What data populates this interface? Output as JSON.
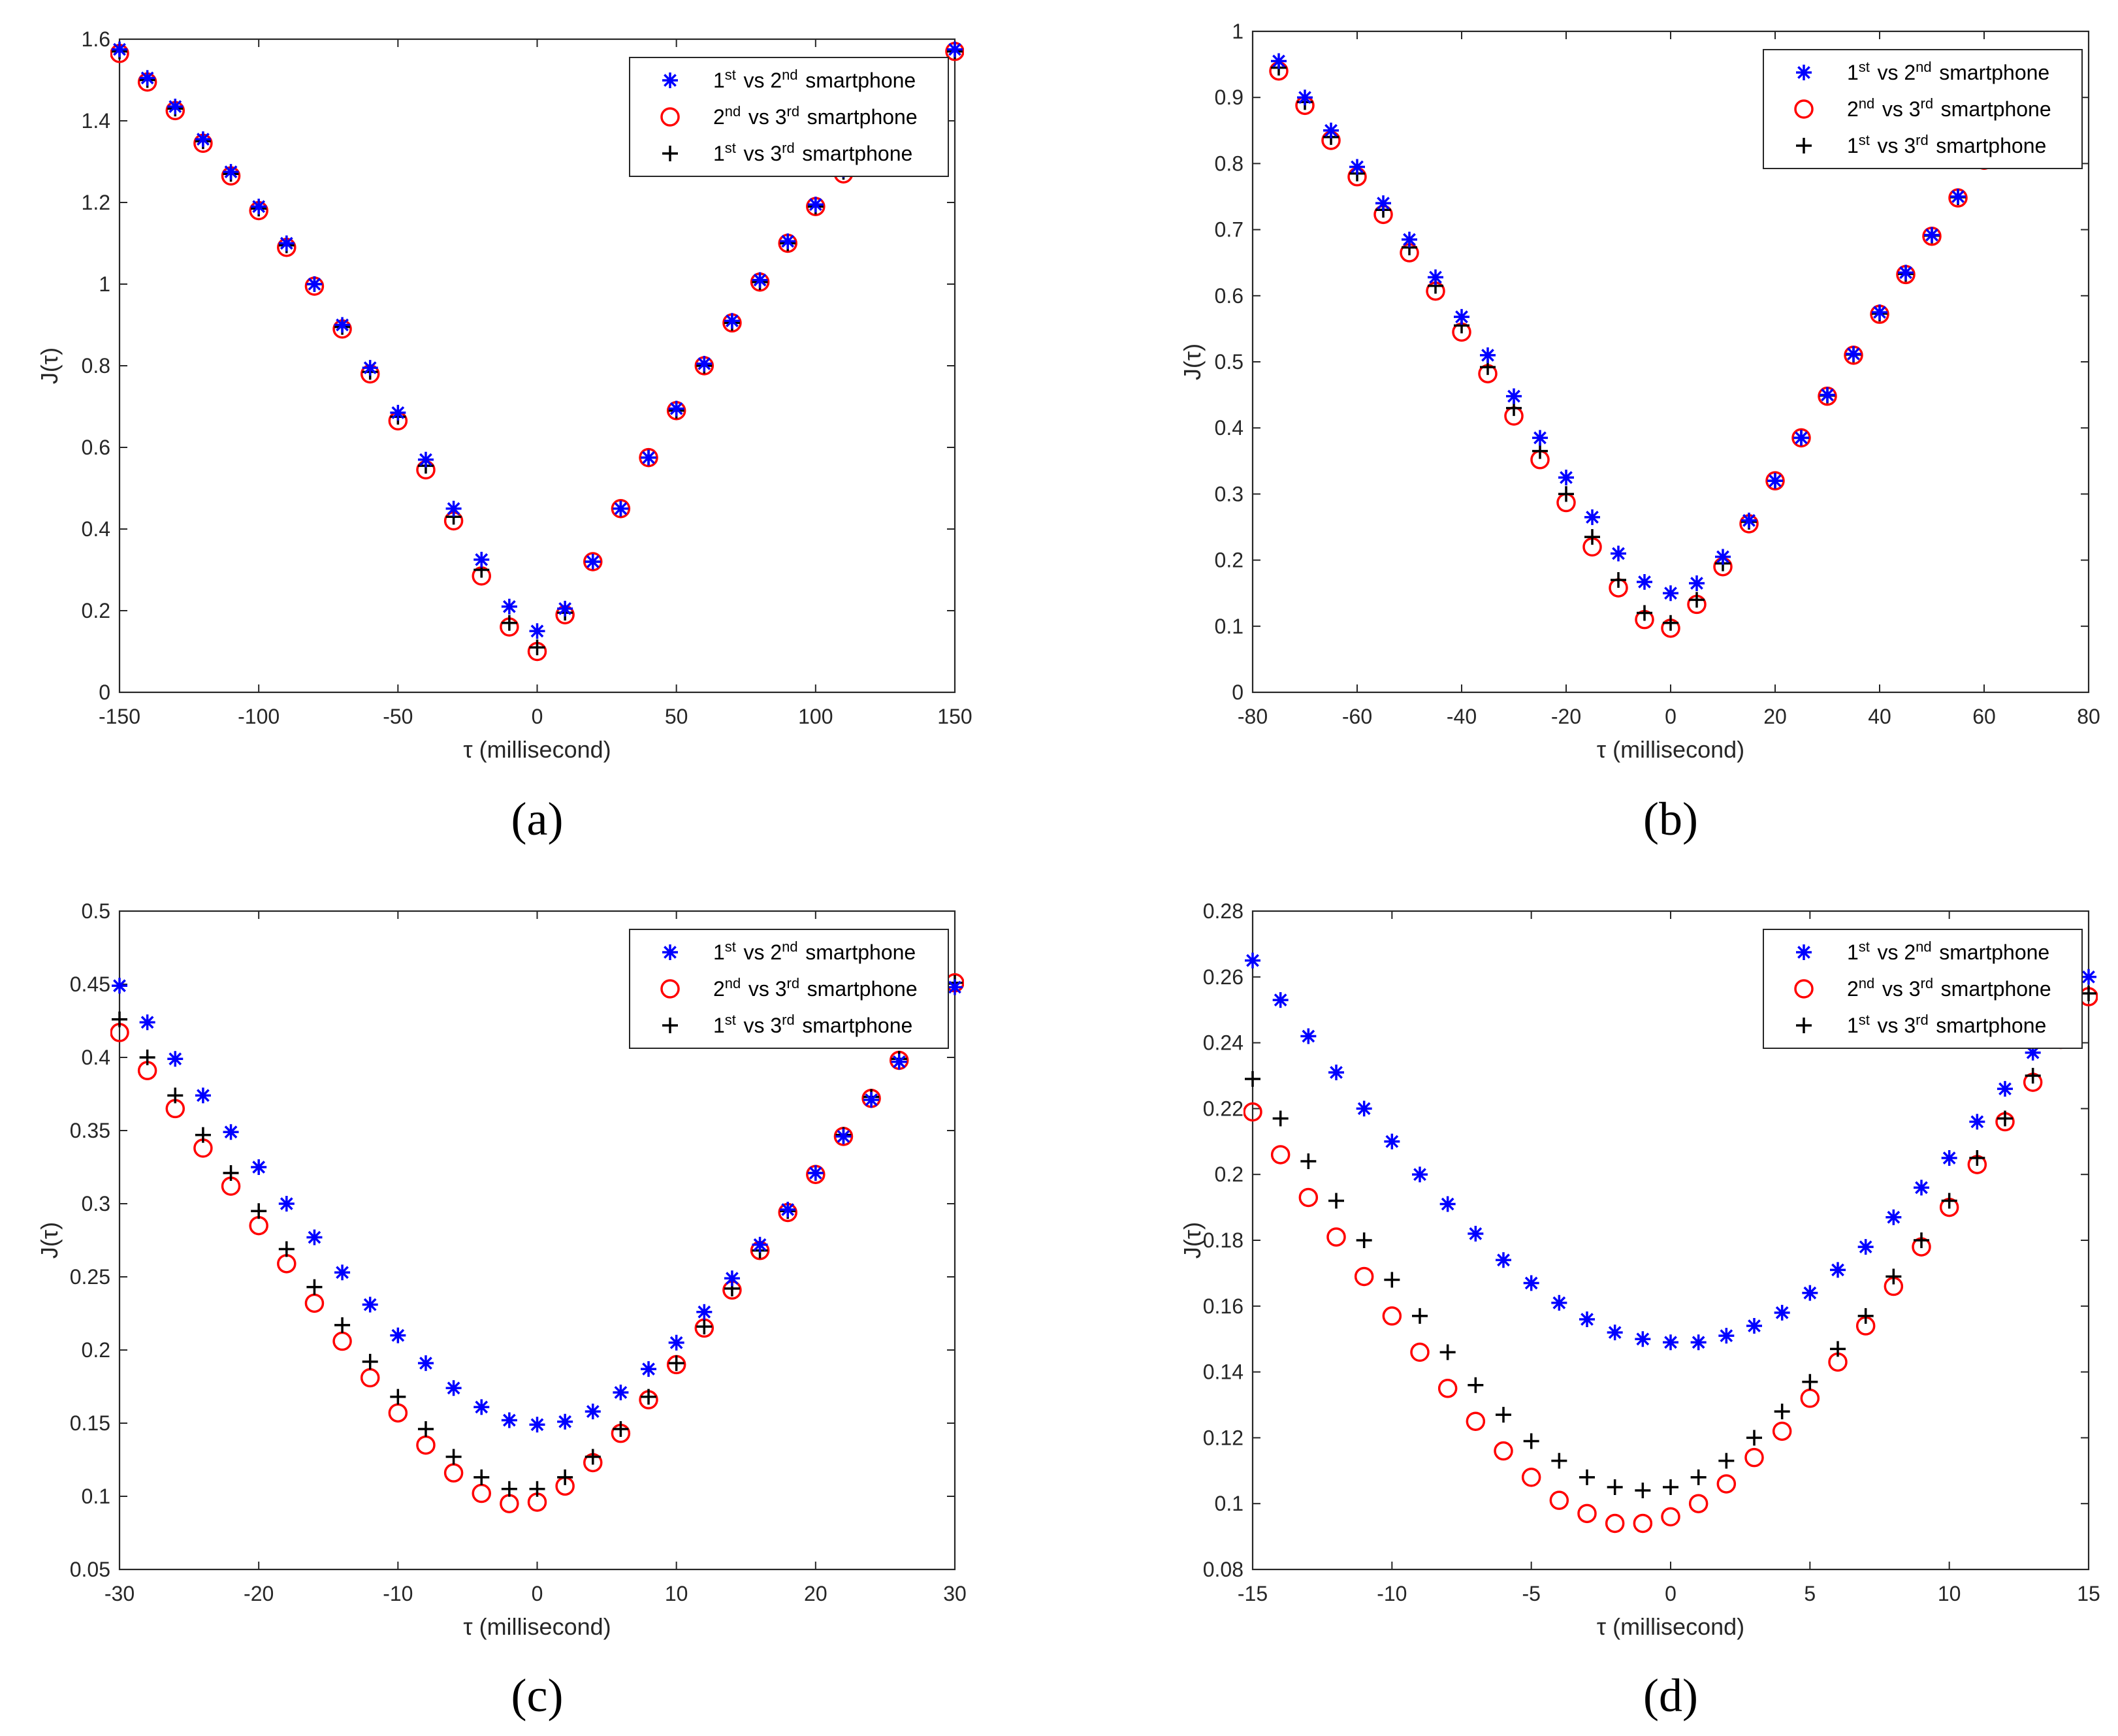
{
  "colors": {
    "series1": "#0000ff",
    "series2": "#ff0000",
    "series3": "#000000",
    "axis": "#262626",
    "background": "#ffffff"
  },
  "chart_data": [
    {
      "type": "scatter",
      "panel": "(a)",
      "xlabel": "τ (millisecond)",
      "ylabel": "J(τ)",
      "xlim": [
        -150,
        150
      ],
      "ylim": [
        0,
        1.6
      ],
      "xticks": [
        -150,
        -100,
        -50,
        0,
        50,
        100,
        150
      ],
      "xtick_labels": [
        "-150",
        "-100",
        "-50",
        "0",
        "50",
        "100",
        "150"
      ],
      "yticks": [
        0,
        0.2,
        0.4,
        0.6,
        0.8,
        1,
        1.2,
        1.4,
        1.6
      ],
      "ytick_labels": [
        "0",
        "0.2",
        "0.4",
        "0.6",
        "0.8",
        "1",
        "1.2",
        "1.4",
        "1.6"
      ],
      "grid": false,
      "legend_position": "top-right",
      "x": [
        -150,
        -140,
        -130,
        -120,
        -110,
        -100,
        -90,
        -80,
        -70,
        -60,
        -50,
        -40,
        -30,
        -20,
        -10,
        0,
        10,
        20,
        30,
        40,
        50,
        60,
        70,
        80,
        90,
        100,
        110,
        120,
        130,
        140,
        150
      ],
      "series": [
        {
          "name": "1st vs 2nd smartphone",
          "marker": "asterisk",
          "values": [
            1.575,
            1.505,
            1.435,
            1.355,
            1.275,
            1.19,
            1.1,
            1.0,
            0.9,
            0.795,
            0.685,
            0.57,
            0.45,
            0.325,
            0.21,
            0.15,
            0.205,
            0.32,
            0.45,
            0.575,
            0.695,
            0.805,
            0.91,
            1.01,
            1.105,
            1.195,
            1.28,
            1.36,
            1.44,
            1.51,
            1.575
          ]
        },
        {
          "name": "2nd vs 3rd smartphone",
          "marker": "circle",
          "values": [
            1.565,
            1.495,
            1.425,
            1.345,
            1.265,
            1.18,
            1.09,
            0.995,
            0.89,
            0.78,
            0.665,
            0.545,
            0.42,
            0.285,
            0.16,
            0.1,
            0.19,
            0.32,
            0.45,
            0.575,
            0.69,
            0.8,
            0.905,
            1.005,
            1.1,
            1.19,
            1.27,
            1.35,
            1.42,
            1.5,
            1.57
          ]
        },
        {
          "name": "1st vs 3rd smartphone",
          "marker": "plus",
          "values": [
            1.57,
            1.5,
            1.43,
            1.35,
            1.27,
            1.185,
            1.095,
            1.0,
            0.895,
            0.785,
            0.675,
            0.555,
            0.43,
            0.3,
            0.17,
            0.11,
            0.195,
            0.32,
            0.45,
            0.575,
            0.69,
            0.8,
            0.905,
            1.005,
            1.1,
            1.19,
            1.275,
            1.355,
            1.43,
            1.505,
            1.57
          ]
        }
      ]
    },
    {
      "type": "scatter",
      "panel": "(b)",
      "xlabel": "τ (millisecond)",
      "ylabel": "J(τ)",
      "xlim": [
        -80,
        80
      ],
      "ylim": [
        0,
        1
      ],
      "xticks": [
        -80,
        -60,
        -40,
        -20,
        0,
        20,
        40,
        60,
        80
      ],
      "xtick_labels": [
        "-80",
        "-60",
        "-40",
        "-20",
        "0",
        "20",
        "40",
        "60",
        "80"
      ],
      "yticks": [
        0,
        0.1,
        0.2,
        0.3,
        0.4,
        0.5,
        0.6,
        0.7,
        0.8,
        0.9,
        1
      ],
      "ytick_labels": [
        "0",
        "0.1",
        "0.2",
        "0.3",
        "0.4",
        "0.5",
        "0.6",
        "0.7",
        "0.8",
        "0.9",
        "1"
      ],
      "grid": false,
      "legend_position": "top-right",
      "x": [
        -75,
        -70,
        -65,
        -60,
        -55,
        -50,
        -45,
        -40,
        -35,
        -30,
        -25,
        -20,
        -15,
        -10,
        -5,
        0,
        5,
        10,
        15,
        20,
        25,
        30,
        35,
        40,
        45,
        50,
        55,
        60,
        65,
        70,
        75
      ],
      "series": [
        {
          "name": "1st vs 2nd smartphone",
          "marker": "asterisk",
          "values": [
            0.955,
            0.9,
            0.85,
            0.795,
            0.74,
            0.685,
            0.628,
            0.568,
            0.51,
            0.448,
            0.385,
            0.325,
            0.265,
            0.21,
            0.167,
            0.15,
            0.165,
            0.205,
            0.26,
            0.32,
            0.385,
            0.45,
            0.512,
            0.575,
            0.635,
            0.692,
            0.75,
            0.81,
            0.86,
            0.91,
            0.96
          ]
        },
        {
          "name": "2nd vs 3rd smartphone",
          "marker": "circle",
          "values": [
            0.94,
            0.888,
            0.835,
            0.78,
            0.723,
            0.665,
            0.607,
            0.545,
            0.482,
            0.418,
            0.352,
            0.287,
            0.22,
            0.158,
            0.11,
            0.097,
            0.133,
            0.19,
            0.255,
            0.32,
            0.385,
            0.448,
            0.51,
            0.572,
            0.632,
            0.69,
            0.748,
            0.805,
            0.855,
            0.905,
            0.955
          ]
        },
        {
          "name": "1st vs 3rd smartphone",
          "marker": "plus",
          "values": [
            0.945,
            0.893,
            0.84,
            0.785,
            0.73,
            0.673,
            0.615,
            0.555,
            0.492,
            0.43,
            0.365,
            0.3,
            0.235,
            0.17,
            0.12,
            0.105,
            0.14,
            0.195,
            0.258,
            0.32,
            0.385,
            0.449,
            0.511,
            0.573,
            0.633,
            0.691,
            0.749,
            0.807,
            0.857,
            0.907,
            0.957
          ]
        }
      ]
    },
    {
      "type": "scatter",
      "panel": "(c)",
      "xlabel": "τ (millisecond)",
      "ylabel": "J(τ)",
      "xlim": [
        -30,
        30
      ],
      "ylim": [
        0.05,
        0.5
      ],
      "xticks": [
        -30,
        -20,
        -10,
        0,
        10,
        20,
        30
      ],
      "xtick_labels": [
        "-30",
        "-20",
        "-10",
        "0",
        "10",
        "20",
        "30"
      ],
      "yticks": [
        0.05,
        0.1,
        0.15,
        0.2,
        0.25,
        0.3,
        0.35,
        0.4,
        0.45,
        0.5
      ],
      "ytick_labels": [
        "0.05",
        "0.1",
        "0.15",
        "0.2",
        "0.25",
        "0.3",
        "0.35",
        "0.4",
        "0.45",
        "0.5"
      ],
      "grid": false,
      "legend_position": "top-right",
      "x": [
        -30,
        -28,
        -26,
        -24,
        -22,
        -20,
        -18,
        -16,
        -14,
        -12,
        -10,
        -8,
        -6,
        -4,
        -2,
        0,
        2,
        4,
        6,
        8,
        10,
        12,
        14,
        16,
        18,
        20,
        22,
        24,
        26,
        28,
        30
      ],
      "series": [
        {
          "name": "1st vs 2nd smartphone",
          "marker": "asterisk",
          "values": [
            0.449,
            0.424,
            0.399,
            0.374,
            0.349,
            0.325,
            0.3,
            0.277,
            0.253,
            0.231,
            0.21,
            0.191,
            0.174,
            0.161,
            0.152,
            0.149,
            0.151,
            0.158,
            0.171,
            0.187,
            0.205,
            0.226,
            0.249,
            0.272,
            0.296,
            0.321,
            0.346,
            0.371,
            0.397,
            0.422,
            0.448
          ]
        },
        {
          "name": "2nd vs 3rd smartphone",
          "marker": "circle",
          "values": [
            0.417,
            0.391,
            0.365,
            0.338,
            0.312,
            0.285,
            0.259,
            0.232,
            0.206,
            0.181,
            0.157,
            0.135,
            0.116,
            0.102,
            0.095,
            0.096,
            0.107,
            0.123,
            0.143,
            0.166,
            0.19,
            0.215,
            0.241,
            0.268,
            0.294,
            0.32,
            0.346,
            0.372,
            0.398,
            0.424,
            0.451
          ]
        },
        {
          "name": "1st vs 3rd smartphone",
          "marker": "plus",
          "values": [
            0.426,
            0.4,
            0.374,
            0.347,
            0.321,
            0.295,
            0.269,
            0.243,
            0.217,
            0.192,
            0.168,
            0.146,
            0.127,
            0.113,
            0.105,
            0.105,
            0.113,
            0.127,
            0.146,
            0.168,
            0.191,
            0.216,
            0.242,
            0.268,
            0.295,
            0.321,
            0.347,
            0.373,
            0.399,
            0.425,
            0.451
          ]
        }
      ]
    },
    {
      "type": "scatter",
      "panel": "(d)",
      "xlabel": "τ (millisecond)",
      "ylabel": "J(τ)",
      "xlim": [
        -15,
        15
      ],
      "ylim": [
        0.08,
        0.28
      ],
      "xticks": [
        -15,
        -10,
        -5,
        0,
        5,
        10,
        15
      ],
      "xtick_labels": [
        "-15",
        "-10",
        "-5",
        "0",
        "5",
        "10",
        "15"
      ],
      "yticks": [
        0.08,
        0.1,
        0.12,
        0.14,
        0.16,
        0.18,
        0.2,
        0.22,
        0.24,
        0.26,
        0.28
      ],
      "ytick_labels": [
        "0.08",
        "0.1",
        "0.12",
        "0.14",
        "0.16",
        "0.18",
        "0.2",
        "0.22",
        "0.24",
        "0.26",
        "0.28"
      ],
      "grid": false,
      "legend_position": "top-right",
      "x": [
        -15,
        -14,
        -13,
        -12,
        -11,
        -10,
        -9,
        -8,
        -7,
        -6,
        -5,
        -4,
        -3,
        -2,
        -1,
        0,
        1,
        2,
        3,
        4,
        5,
        6,
        7,
        8,
        9,
        10,
        11,
        12,
        13,
        14,
        15
      ],
      "series": [
        {
          "name": "1st vs 2nd smartphone",
          "marker": "asterisk",
          "values": [
            0.265,
            0.253,
            0.242,
            0.231,
            0.22,
            0.21,
            0.2,
            0.191,
            0.182,
            0.174,
            0.167,
            0.161,
            0.156,
            0.152,
            0.15,
            0.149,
            0.149,
            0.151,
            0.154,
            0.158,
            0.164,
            0.171,
            0.178,
            0.187,
            0.196,
            0.205,
            0.216,
            0.226,
            0.237,
            0.249,
            0.26
          ]
        },
        {
          "name": "2nd vs 3rd smartphone",
          "marker": "circle",
          "values": [
            0.219,
            0.206,
            0.193,
            0.181,
            0.169,
            0.157,
            0.146,
            0.135,
            0.125,
            0.116,
            0.108,
            0.101,
            0.097,
            0.094,
            0.094,
            0.096,
            0.1,
            0.106,
            0.114,
            0.122,
            0.132,
            0.143,
            0.154,
            0.166,
            0.178,
            0.19,
            0.203,
            0.216,
            0.228,
            0.241,
            0.254
          ]
        },
        {
          "name": "1st vs 3rd smartphone",
          "marker": "plus",
          "values": [
            0.229,
            0.217,
            0.204,
            0.192,
            0.18,
            0.168,
            0.157,
            0.146,
            0.136,
            0.127,
            0.119,
            0.113,
            0.108,
            0.105,
            0.104,
            0.105,
            0.108,
            0.113,
            0.12,
            0.128,
            0.137,
            0.147,
            0.157,
            0.169,
            0.18,
            0.192,
            0.205,
            0.217,
            0.23,
            0.242,
            0.255
          ]
        }
      ]
    }
  ]
}
